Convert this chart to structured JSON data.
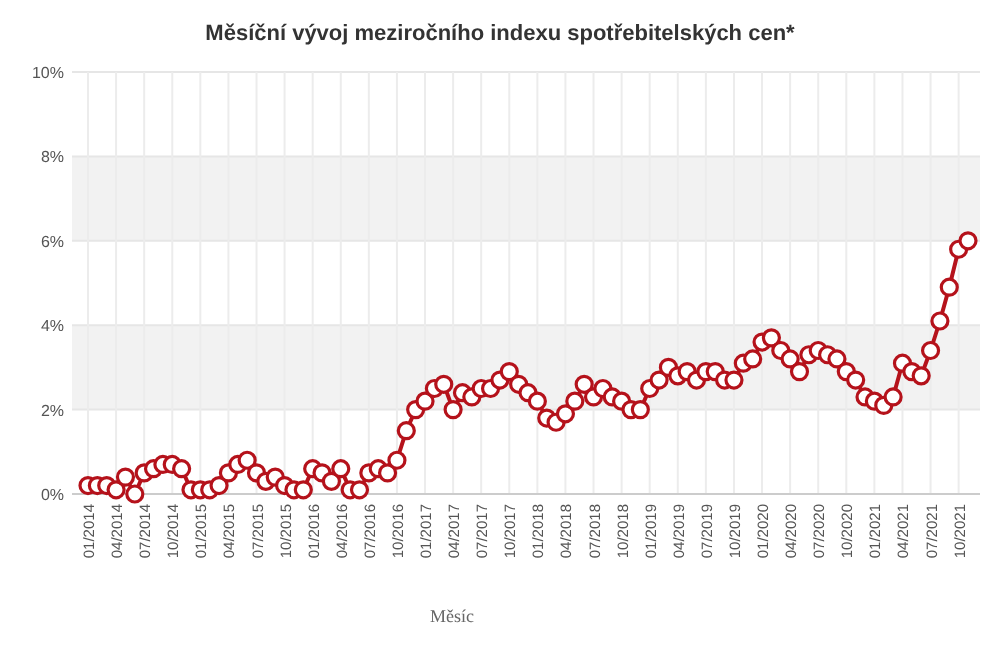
{
  "chart_data": {
    "type": "line",
    "title": "Měsíční vývoj meziročního indexu spotřebitelských cen*",
    "xlabel": "Měsíc",
    "categories": [
      "01/2014",
      null,
      null,
      "04/2014",
      null,
      null,
      "07/2014",
      null,
      null,
      "10/2014",
      null,
      null,
      "01/2015",
      null,
      null,
      "04/2015",
      null,
      null,
      "07/2015",
      null,
      null,
      "10/2015",
      null,
      null,
      "01/2016",
      null,
      null,
      "04/2016",
      null,
      null,
      "07/2016",
      null,
      null,
      "10/2016",
      null,
      null,
      "01/2017",
      null,
      null,
      "04/2017",
      null,
      null,
      "07/2017",
      null,
      null,
      "10/2017",
      null,
      null,
      "01/2018",
      null,
      null,
      "04/2018",
      null,
      null,
      "07/2018",
      null,
      null,
      "10/2018",
      null,
      null,
      "01/2019",
      null,
      null,
      "04/2019",
      null,
      null,
      "07/2019",
      null,
      null,
      "10/2019",
      null,
      null,
      "01/2020",
      null,
      null,
      "04/2020",
      null,
      null,
      "07/2020",
      null,
      null,
      "10/2020",
      null,
      null,
      "01/2021",
      null,
      null,
      "04/2021",
      null,
      null,
      "07/2021",
      null,
      null,
      "10/2021",
      null
    ],
    "series": [
      {
        "color": "#b5121b",
        "values": [
          0.2,
          0.2,
          0.2,
          0.1,
          0.4,
          0.0,
          0.5,
          0.6,
          0.7,
          0.7,
          0.6,
          0.1,
          0.1,
          0.1,
          0.2,
          0.5,
          0.7,
          0.8,
          0.5,
          0.3,
          0.4,
          0.2,
          0.1,
          0.1,
          0.6,
          0.5,
          0.3,
          0.6,
          0.1,
          0.1,
          0.5,
          0.6,
          0.5,
          0.8,
          1.5,
          2.0,
          2.2,
          2.5,
          2.6,
          2.0,
          2.4,
          2.3,
          2.5,
          2.5,
          2.7,
          2.9,
          2.6,
          2.4,
          2.2,
          1.8,
          1.7,
          1.9,
          2.2,
          2.6,
          2.3,
          2.5,
          2.3,
          2.2,
          2.0,
          2.0,
          2.5,
          2.7,
          3.0,
          2.8,
          2.9,
          2.7,
          2.9,
          2.9,
          2.7,
          2.7,
          3.1,
          3.2,
          3.6,
          3.7,
          3.4,
          3.2,
          2.9,
          3.3,
          3.4,
          3.3,
          3.2,
          2.9,
          2.7,
          2.3,
          2.2,
          2.1,
          2.3,
          3.1,
          2.9,
          2.8,
          3.4,
          4.1,
          4.9,
          5.8,
          6.0
        ]
      }
    ],
    "ylim": [
      0,
      10
    ],
    "yticks": [
      {
        "value": 0,
        "label": "0%"
      },
      {
        "value": 2,
        "label": "2%"
      },
      {
        "value": 4,
        "label": "4%"
      },
      {
        "value": 6,
        "label": "6%"
      },
      {
        "value": 8,
        "label": "8%"
      },
      {
        "value": 10,
        "label": "10%"
      }
    ],
    "bands": [
      {
        "axis": "y",
        "from": 2,
        "to": 4,
        "color": "#f2f2f2"
      },
      {
        "axis": "y",
        "from": 6,
        "to": 8,
        "color": "#f2f2f2"
      }
    ],
    "grid": true,
    "marker": "circle",
    "line_style": "solid"
  }
}
